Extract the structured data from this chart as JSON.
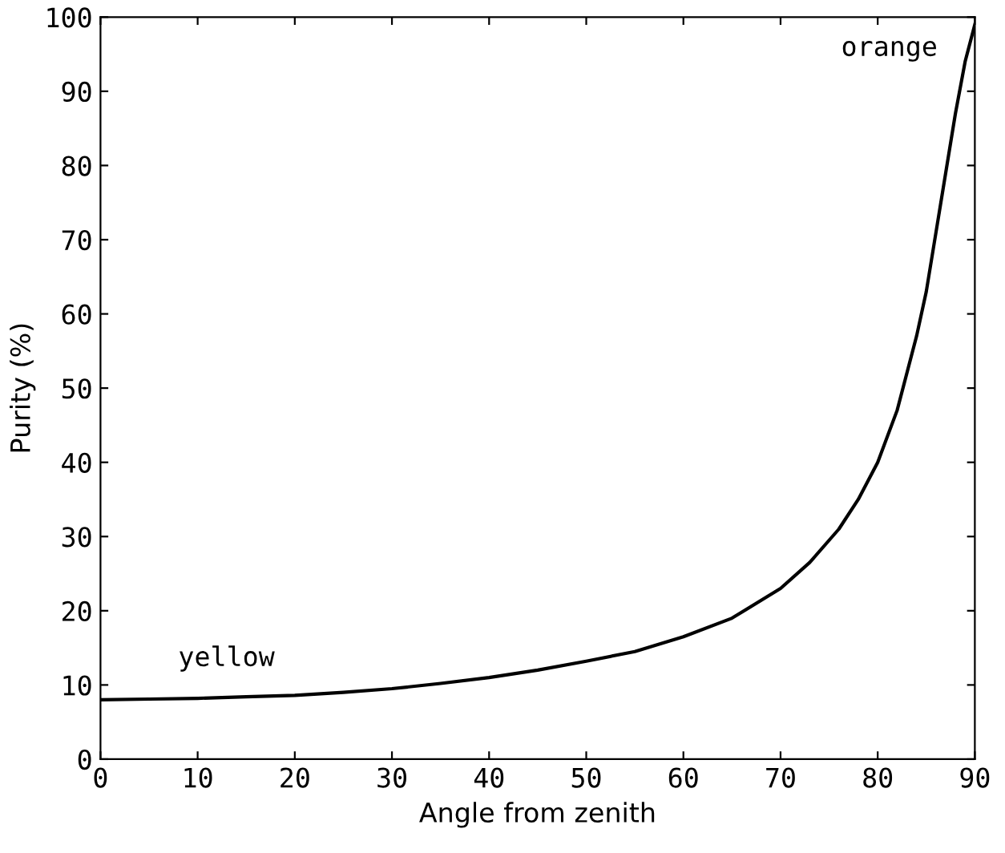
{
  "chart_data": {
    "type": "line",
    "xlabel": "Angle from zenith",
    "ylabel": "Purity (%)",
    "x": [
      0,
      5,
      10,
      15,
      20,
      25,
      30,
      35,
      40,
      45,
      50,
      55,
      60,
      65,
      70,
      73,
      76,
      78,
      80,
      82,
      84,
      85,
      86,
      87,
      88,
      89,
      90
    ],
    "values": [
      8,
      8.1,
      8.2,
      8.4,
      8.6,
      9,
      9.5,
      10.2,
      11,
      12,
      13.2,
      14.5,
      16.5,
      19,
      23,
      26.5,
      31,
      35,
      40,
      47,
      57,
      63,
      71,
      79,
      87,
      94,
      99
    ],
    "color": "#000000",
    "marker": "none",
    "line_style": "solid",
    "xlim": [
      0,
      90
    ],
    "ylim": [
      0,
      100
    ],
    "xticks": [
      0,
      10,
      20,
      30,
      40,
      50,
      60,
      70,
      80,
      90
    ],
    "yticks": [
      0,
      10,
      20,
      30,
      40,
      50,
      60,
      70,
      80,
      90,
      100
    ],
    "grid": false,
    "legend": false,
    "annotations": [
      {
        "text": "yellow",
        "x": 8,
        "y": 8.2
      },
      {
        "text": "orange",
        "x": 88,
        "y": 94
      }
    ]
  }
}
